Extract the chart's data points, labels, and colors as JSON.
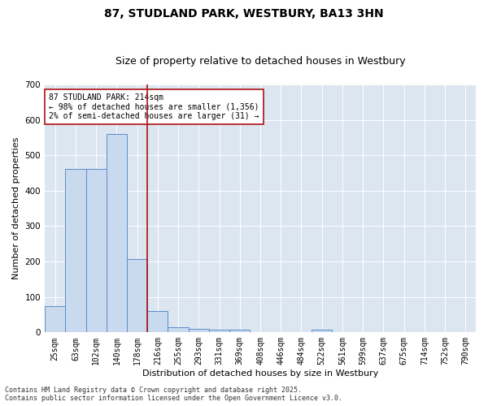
{
  "title": "87, STUDLAND PARK, WESTBURY, BA13 3HN",
  "subtitle": "Size of property relative to detached houses in Westbury",
  "xlabel": "Distribution of detached houses by size in Westbury",
  "ylabel": "Number of detached properties",
  "categories": [
    "25sqm",
    "63sqm",
    "102sqm",
    "140sqm",
    "178sqm",
    "216sqm",
    "255sqm",
    "293sqm",
    "331sqm",
    "369sqm",
    "408sqm",
    "446sqm",
    "484sqm",
    "522sqm",
    "561sqm",
    "599sqm",
    "637sqm",
    "675sqm",
    "714sqm",
    "752sqm",
    "790sqm"
  ],
  "values": [
    75,
    462,
    462,
    560,
    207,
    60,
    15,
    10,
    7,
    7,
    0,
    0,
    0,
    7,
    0,
    0,
    0,
    0,
    0,
    0,
    0
  ],
  "bar_color": "#c9d9ee",
  "bar_edge_color": "#5b8cc8",
  "bg_color": "#dce6f1",
  "grid_color": "#ffffff",
  "vline_color": "#aa1111",
  "annotation_box_text": "87 STUDLAND PARK: 214sqm\n← 98% of detached houses are smaller (1,356)\n2% of semi-detached houses are larger (31) →",
  "annotation_box_color": "#aa1111",
  "footnote": "Contains HM Land Registry data © Crown copyright and database right 2025.\nContains public sector information licensed under the Open Government Licence v3.0.",
  "ylim": [
    0,
    700
  ],
  "title_fontsize": 10,
  "subtitle_fontsize": 9,
  "tick_fontsize": 7,
  "ylabel_fontsize": 8,
  "xlabel_fontsize": 8,
  "annot_fontsize": 7,
  "footnote_fontsize": 6
}
